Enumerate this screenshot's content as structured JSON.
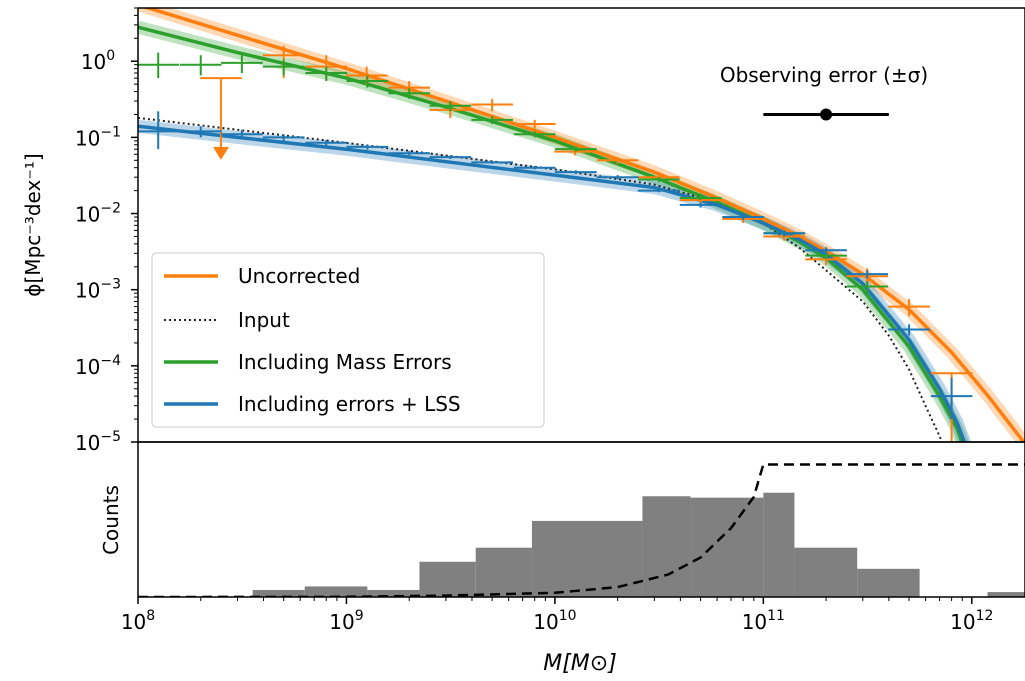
{
  "chart_data": [
    {
      "type": "line",
      "panel": "top",
      "xscale": "log",
      "yscale": "log",
      "xlim": [
        100000000,
        1800000000000
      ],
      "ylim": [
        1e-05,
        5
      ],
      "ylabel": "ϕ[Mpc⁻³dex⁻¹]",
      "y_ticks": [
        {
          "value": 1,
          "base": "10",
          "exp": "0"
        },
        {
          "value": 0.1,
          "base": "10",
          "exp": "−1"
        },
        {
          "value": 0.01,
          "base": "10",
          "exp": "−2"
        },
        {
          "value": 0.001,
          "base": "10",
          "exp": "−3"
        },
        {
          "value": 0.0001,
          "base": "10",
          "exp": "−4"
        },
        {
          "value": 1e-05,
          "base": "10",
          "exp": "−5"
        }
      ],
      "legend": {
        "position": "lower-left"
      },
      "series": [
        {
          "name": "Uncorrected",
          "color": "#ff7f0e",
          "style": "solid",
          "x": [
            100000000,
            300000000,
            1000000000,
            3000000000,
            10000000000,
            30000000000,
            60000000000,
            100000000000,
            150000000000,
            200000000000,
            300000000000,
            500000000000,
            800000000000,
            1200000000000,
            1800000000000
          ],
          "y": [
            5.5,
            2.2,
            0.8,
            0.3,
            0.1,
            0.035,
            0.016,
            0.0085,
            0.005,
            0.0032,
            0.0016,
            0.00055,
            0.00015,
            4e-05,
            9.5e-06
          ]
        },
        {
          "name": "Input",
          "color": "#222222",
          "style": "dotted",
          "x": [
            100000000,
            1000000000,
            10000000000,
            30000000000,
            60000000000,
            100000000000,
            150000000000,
            200000000000,
            300000000000,
            400000000000,
            500000000000,
            600000000000,
            700000000000,
            800000000000
          ],
          "y": [
            0.18,
            0.085,
            0.038,
            0.024,
            0.014,
            0.0075,
            0.0035,
            0.0018,
            0.0007,
            0.00025,
            9e-05,
            3e-05,
            1.2e-05,
            5e-06
          ]
        },
        {
          "name": "Including Mass Errors",
          "color": "#2ca02c",
          "style": "solid",
          "x": [
            100000000,
            300000000,
            1000000000,
            3000000000,
            10000000000,
            30000000000,
            60000000000,
            100000000000,
            150000000000,
            200000000000,
            300000000000,
            500000000000,
            700000000000,
            850000000000,
            950000000000
          ],
          "y": [
            2.8,
            1.3,
            0.6,
            0.25,
            0.09,
            0.03,
            0.014,
            0.0075,
            0.0042,
            0.0026,
            0.001,
            0.00018,
            4e-05,
            1.5e-05,
            6.5e-06
          ]
        },
        {
          "name": "Including errors + LSS",
          "color": "#1f77b4",
          "style": "solid",
          "x": [
            100000000,
            300000000,
            1000000000,
            3000000000,
            10000000000,
            30000000000,
            60000000000,
            100000000000,
            150000000000,
            200000000000,
            300000000000,
            500000000000,
            700000000000,
            850000000000,
            950000000000
          ],
          "y": [
            0.14,
            0.1,
            0.07,
            0.048,
            0.032,
            0.022,
            0.013,
            0.0075,
            0.0045,
            0.0029,
            0.0012,
            0.00022,
            5e-05,
            1.8e-05,
            8e-06
          ]
        }
      ],
      "error_bars": [
        {
          "series": "Uncorrected",
          "color": "#ff7f0e",
          "points": [
            {
              "x": 250000000,
              "y": 0.6,
              "xerr_dex": 0.1,
              "upper_limit": true
            },
            {
              "x": 500000000,
              "y": 1.2,
              "xerr_dex": 0.1,
              "y_lo": 0.6,
              "y_hi": 1.6
            },
            {
              "x": 800000000,
              "y": 0.85,
              "xerr_dex": 0.1,
              "y_lo": 0.55,
              "y_hi": 1.2
            },
            {
              "x": 1250000000,
              "y": 0.65,
              "xerr_dex": 0.1,
              "y_lo": 0.5,
              "y_hi": 0.85
            },
            {
              "x": 2000000000,
              "y": 0.45,
              "xerr_dex": 0.1,
              "y_lo": 0.35,
              "y_hi": 0.55
            },
            {
              "x": 3150000000,
              "y": 0.23,
              "xerr_dex": 0.1,
              "y_lo": 0.18,
              "y_hi": 0.29
            },
            {
              "x": 5000000000,
              "y": 0.27,
              "xerr_dex": 0.1,
              "y_lo": 0.22,
              "y_hi": 0.32
            },
            {
              "x": 8000000000,
              "y": 0.15,
              "xerr_dex": 0.1,
              "y_lo": 0.13,
              "y_hi": 0.17
            },
            {
              "x": 12500000000,
              "y": 0.065,
              "xerr_dex": 0.1,
              "y_lo": 0.058,
              "y_hi": 0.072
            },
            {
              "x": 20000000000,
              "y": 0.05,
              "xerr_dex": 0.1,
              "y_lo": 0.045,
              "y_hi": 0.055
            },
            {
              "x": 31500000000,
              "y": 0.03,
              "xerr_dex": 0.1,
              "y_lo": 0.027,
              "y_hi": 0.033
            },
            {
              "x": 50000000000,
              "y": 0.015,
              "xerr_dex": 0.1,
              "y_lo": 0.013,
              "y_hi": 0.017
            },
            {
              "x": 80000000000,
              "y": 0.0085,
              "xerr_dex": 0.1,
              "y_lo": 0.0075,
              "y_hi": 0.0095
            },
            {
              "x": 126000000000,
              "y": 0.005,
              "xerr_dex": 0.1,
              "y_lo": 0.0044,
              "y_hi": 0.0056
            },
            {
              "x": 200000000000,
              "y": 0.0025,
              "xerr_dex": 0.1,
              "y_lo": 0.0021,
              "y_hi": 0.0029
            },
            {
              "x": 315000000000,
              "y": 0.0015,
              "xerr_dex": 0.1,
              "y_lo": 0.0012,
              "y_hi": 0.0019
            },
            {
              "x": 500000000000,
              "y": 0.0006,
              "xerr_dex": 0.1,
              "y_lo": 0.00045,
              "y_hi": 0.00075
            },
            {
              "x": 800000000000,
              "y": 8e-05,
              "xerr_dex": 0.1,
              "y_lo": 1e-05,
              "y_hi": 8e-05
            }
          ]
        },
        {
          "series": "Including Mass Errors",
          "color": "#2ca02c",
          "points": [
            {
              "x": 125000000,
              "y": 0.9,
              "xerr_dex": 0.1,
              "y_lo": 0.6,
              "y_hi": 1.3
            },
            {
              "x": 200000000,
              "y": 0.9,
              "xerr_dex": 0.1,
              "y_lo": 0.65,
              "y_hi": 1.2
            },
            {
              "x": 315000000,
              "y": 0.95,
              "xerr_dex": 0.1,
              "y_lo": 0.7,
              "y_hi": 1.2
            },
            {
              "x": 500000000,
              "y": 0.85,
              "xerr_dex": 0.1,
              "y_lo": 0.65,
              "y_hi": 1.05
            },
            {
              "x": 800000000,
              "y": 0.7,
              "xerr_dex": 0.1,
              "y_lo": 0.55,
              "y_hi": 0.85
            },
            {
              "x": 1260000000,
              "y": 0.55,
              "xerr_dex": 0.1,
              "y_lo": 0.45,
              "y_hi": 0.65
            },
            {
              "x": 2000000000,
              "y": 0.38,
              "xerr_dex": 0.1,
              "y_lo": 0.32,
              "y_hi": 0.44
            },
            {
              "x": 3150000000,
              "y": 0.26,
              "xerr_dex": 0.1,
              "y_lo": 0.22,
              "y_hi": 0.3
            },
            {
              "x": 5000000000,
              "y": 0.17,
              "xerr_dex": 0.1,
              "y_lo": 0.15,
              "y_hi": 0.19
            },
            {
              "x": 8000000000,
              "y": 0.11,
              "xerr_dex": 0.1,
              "y_lo": 0.1,
              "y_hi": 0.12
            },
            {
              "x": 12600000000,
              "y": 0.07,
              "xerr_dex": 0.1,
              "y_lo": 0.065,
              "y_hi": 0.075
            },
            {
              "x": 31500000000,
              "y": 0.028,
              "xerr_dex": 0.1,
              "y_lo": 0.026,
              "y_hi": 0.03
            },
            {
              "x": 50000000000,
              "y": 0.016,
              "xerr_dex": 0.1,
              "y_lo": 0.015,
              "y_hi": 0.017
            },
            {
              "x": 126000000000,
              "y": 0.0055,
              "xerr_dex": 0.1,
              "y_lo": 0.005,
              "y_hi": 0.006
            },
            {
              "x": 200000000000,
              "y": 0.0028,
              "xerr_dex": 0.1,
              "y_lo": 0.0025,
              "y_hi": 0.0031
            },
            {
              "x": 315000000000,
              "y": 0.0011,
              "xerr_dex": 0.1,
              "y_lo": 0.0009,
              "y_hi": 0.0013
            }
          ]
        },
        {
          "series": "Including errors + LSS",
          "color": "#1f77b4",
          "points": [
            {
              "x": 125000000,
              "y": 0.12,
              "xerr_dex": 0.1,
              "y_lo": 0.07,
              "y_hi": 0.22
            },
            {
              "x": 200000000,
              "y": 0.12,
              "xerr_dex": 0.1,
              "y_lo": 0.1,
              "y_hi": 0.14
            },
            {
              "x": 315000000,
              "y": 0.11,
              "xerr_dex": 0.1,
              "y_lo": 0.095,
              "y_hi": 0.125
            },
            {
              "x": 500000000,
              "y": 0.1,
              "xerr_dex": 0.1,
              "y_lo": 0.09,
              "y_hi": 0.11
            },
            {
              "x": 800000000,
              "y": 0.085,
              "xerr_dex": 0.1,
              "y_lo": 0.077,
              "y_hi": 0.093
            },
            {
              "x": 1260000000,
              "y": 0.075,
              "xerr_dex": 0.1,
              "y_lo": 0.069,
              "y_hi": 0.081
            },
            {
              "x": 2000000000,
              "y": 0.062,
              "xerr_dex": 0.1,
              "y_lo": 0.058,
              "y_hi": 0.066
            },
            {
              "x": 3150000000,
              "y": 0.055,
              "xerr_dex": 0.1,
              "y_lo": 0.052,
              "y_hi": 0.058
            },
            {
              "x": 5000000000,
              "y": 0.047,
              "xerr_dex": 0.1,
              "y_lo": 0.045,
              "y_hi": 0.049
            },
            {
              "x": 8000000000,
              "y": 0.04,
              "xerr_dex": 0.1,
              "y_lo": 0.038,
              "y_hi": 0.042
            },
            {
              "x": 12600000000,
              "y": 0.035,
              "xerr_dex": 0.1,
              "y_lo": 0.033,
              "y_hi": 0.037
            },
            {
              "x": 20000000000,
              "y": 0.03,
              "xerr_dex": 0.1,
              "y_lo": 0.028,
              "y_hi": 0.032
            },
            {
              "x": 31500000000,
              "y": 0.02,
              "xerr_dex": 0.1,
              "y_lo": 0.019,
              "y_hi": 0.021
            },
            {
              "x": 50000000000,
              "y": 0.013,
              "xerr_dex": 0.1,
              "y_lo": 0.012,
              "y_hi": 0.014
            },
            {
              "x": 80000000000,
              "y": 0.009,
              "xerr_dex": 0.1,
              "y_lo": 0.0083,
              "y_hi": 0.0097
            },
            {
              "x": 126000000000,
              "y": 0.0055,
              "xerr_dex": 0.1,
              "y_lo": 0.005,
              "y_hi": 0.006
            },
            {
              "x": 200000000000,
              "y": 0.0033,
              "xerr_dex": 0.1,
              "y_lo": 0.003,
              "y_hi": 0.0036
            },
            {
              "x": 315000000000,
              "y": 0.0016,
              "xerr_dex": 0.1,
              "y_lo": 0.0014,
              "y_hi": 0.0018
            },
            {
              "x": 500000000000,
              "y": 0.0003,
              "xerr_dex": 0.1,
              "y_lo": 0.00025,
              "y_hi": 0.00035
            },
            {
              "x": 800000000000,
              "y": 4e-05,
              "xerr_dex": 0.1,
              "y_lo": 2e-05,
              "y_hi": 7e-05
            }
          ]
        }
      ],
      "annotation": {
        "text": "Observing error (±σ)",
        "center_x": 200000000000,
        "y": 0.2,
        "x_lo": 100000000000,
        "x_hi": 400000000000
      }
    },
    {
      "type": "bar",
      "panel": "bottom",
      "xscale": "log",
      "xlim": [
        100000000,
        1800000000000
      ],
      "ylim": [
        0,
        22
      ],
      "ylabel": "Counts",
      "xlabel": "M[M⊙]",
      "x_ticks": [
        {
          "value": 100000000,
          "base": "10",
          "exp": "8"
        },
        {
          "value": 1000000000,
          "base": "10",
          "exp": "9"
        },
        {
          "value": 10000000000,
          "base": "10",
          "exp": "10"
        },
        {
          "value": 100000000000,
          "base": "10",
          "exp": "11"
        },
        {
          "value": 1000000000000,
          "base": "10",
          "exp": "12"
        }
      ],
      "bar_color": "#808080",
      "bins": [
        {
          "lo": 355000000,
          "hi": 631000000,
          "count": 1
        },
        {
          "lo": 631000000,
          "hi": 1260000000,
          "count": 1.5
        },
        {
          "lo": 1260000000,
          "hi": 2240000000,
          "count": 1
        },
        {
          "lo": 2240000000,
          "hi": 4170000000,
          "count": 5
        },
        {
          "lo": 4170000000,
          "hi": 7760000000,
          "count": 7
        },
        {
          "lo": 7760000000,
          "hi": 26300000000,
          "count": 10.8
        },
        {
          "lo": 26300000000,
          "hi": 44700000000,
          "count": 14.3
        },
        {
          "lo": 44700000000,
          "hi": 100000000000,
          "count": 14.1
        },
        {
          "lo": 100000000000,
          "hi": 141000000000,
          "count": 14.8
        },
        {
          "lo": 141000000000,
          "hi": 282000000000,
          "count": 7
        },
        {
          "lo": 282000000000,
          "hi": 562000000000,
          "count": 4
        },
        {
          "lo": 1190000000000,
          "hi": 1800000000000,
          "count": 0.7
        }
      ],
      "cumulative_curve": {
        "style": "dashed",
        "color": "#000000",
        "x": [
          100000000,
          1000000000,
          3000000000,
          10000000000,
          20000000000,
          35000000000,
          50000000000,
          70000000000,
          90000000000,
          100000000000,
          1800000000000
        ],
        "y": [
          0,
          0.03,
          0.2,
          0.6,
          1.4,
          3.2,
          5.6,
          9.8,
          14.2,
          18.8,
          18.8
        ]
      }
    }
  ]
}
